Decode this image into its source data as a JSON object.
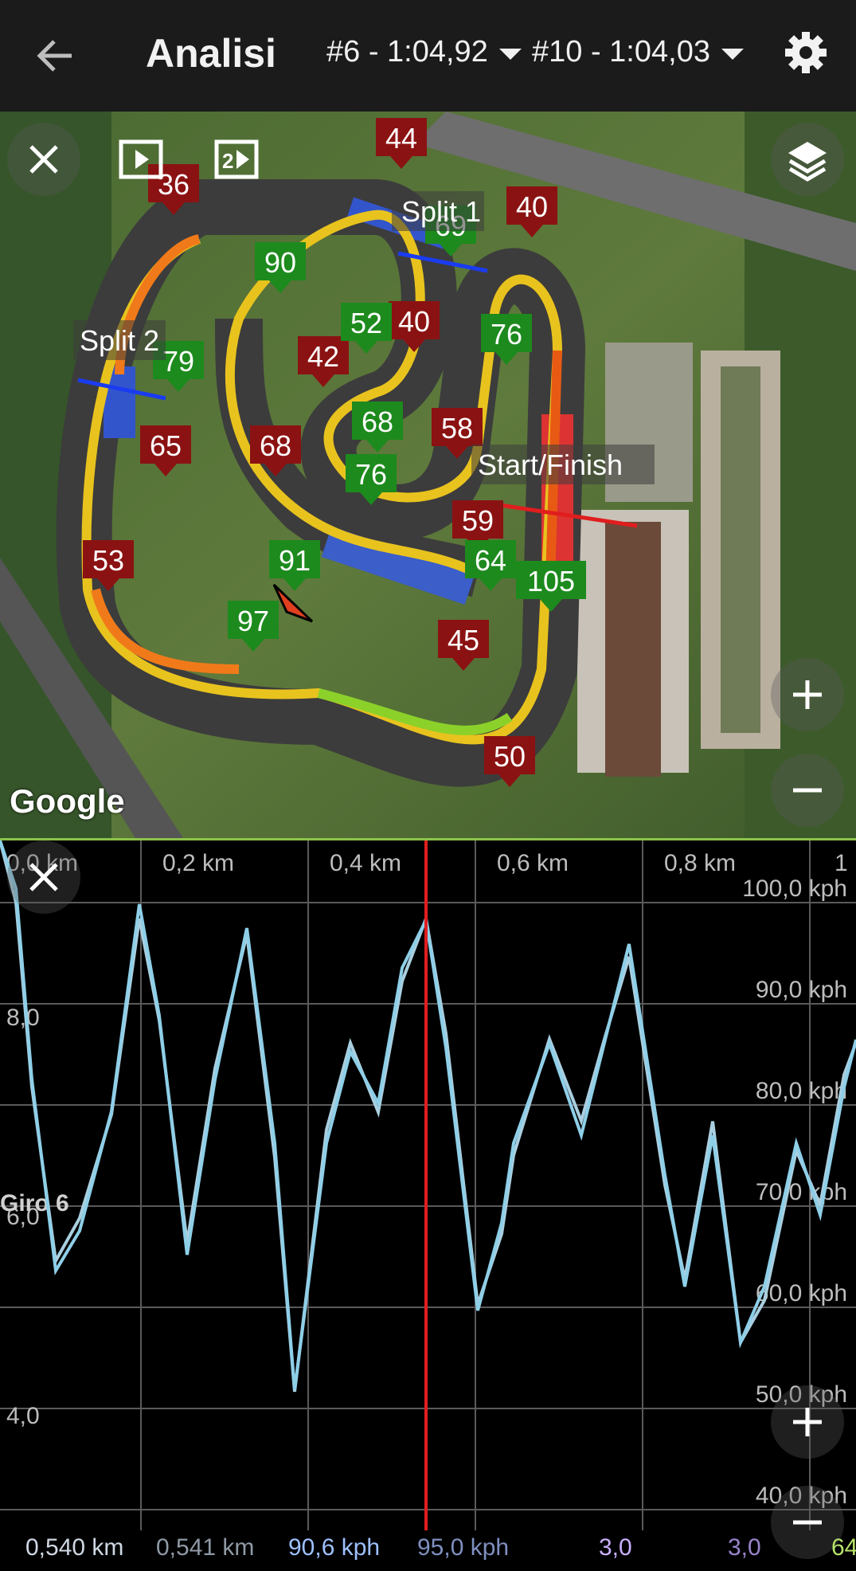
{
  "header": {
    "title": "Analisi",
    "lap_a": "#6 - 1:04,92",
    "lap_b": "#10 - 1:04,03",
    "back_icon": "arrow-left-icon",
    "settings_icon": "gear-icon"
  },
  "map": {
    "brand": "Google",
    "split1_label": "Split 1",
    "split2_label": "Split 2",
    "start_finish_label": "Start/Finish",
    "max_markers": [
      "44",
      "40",
      "40",
      "42",
      "59",
      "45",
      "50",
      "53",
      "65",
      "68",
      "58",
      "36"
    ],
    "min_markers": [
      "69",
      "90",
      "52",
      "76",
      "79",
      "68",
      "76",
      "91",
      "97",
      "64",
      "105"
    ]
  },
  "chart": {
    "x_ticks": [
      "0,0 km",
      "0,2 km",
      "0,4 km",
      "0,6 km",
      "0,8 km",
      "1"
    ],
    "y_right": [
      "100,0 kph",
      "90,0 kph",
      "80,0 kph",
      "70,0 kph",
      "60,0 kph",
      "50,0 kph",
      "40,0 kph"
    ],
    "y_left": [
      "8,0",
      "6,0",
      "4,0"
    ],
    "series_label": "Giro 6",
    "colors": {
      "series_a": "#8ecfe8",
      "series_b": "#b0d8e8",
      "cursor": "#e01e1e",
      "grid": "#5a5a5a"
    }
  },
  "readout": {
    "dist_a": "0,540 km",
    "dist_b": "0,541 km",
    "speed_a": "90,6 kph",
    "speed_b": "95,0 kph",
    "g_a": "3,0",
    "g_b": "3,0",
    "extra": "64"
  }
}
